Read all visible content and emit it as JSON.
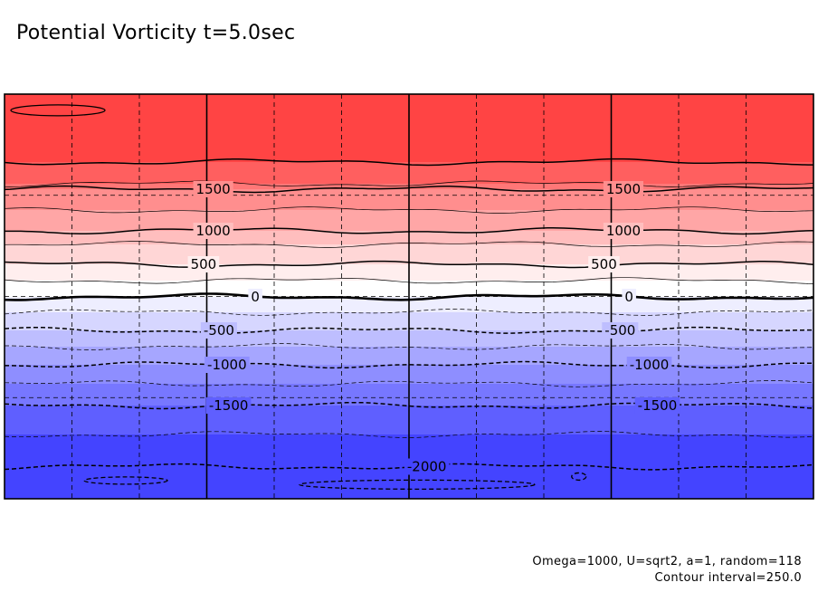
{
  "chart_data": {
    "type": "heatmap",
    "title": "Potential Vorticity t=5.0sec",
    "annotations": [
      "Omega=1000, U=sqrt2, a=1, random=118",
      "Contour interval=250.0"
    ],
    "ylim": [
      -2250,
      2250
    ],
    "contour_interval": 250,
    "bands": [
      {
        "from": 2000,
        "to": 2250,
        "color": "#ff4444"
      },
      {
        "from": 1750,
        "to": 2000,
        "color": "#ff5f5f"
      },
      {
        "from": 1500,
        "to": 1750,
        "color": "#ff7777"
      },
      {
        "from": 1250,
        "to": 1500,
        "color": "#ff8e8e"
      },
      {
        "from": 1000,
        "to": 1250,
        "color": "#ffa6a6"
      },
      {
        "from": 750,
        "to": 1000,
        "color": "#ffbebe"
      },
      {
        "from": 500,
        "to": 750,
        "color": "#ffd6d6"
      },
      {
        "from": 250,
        "to": 500,
        "color": "#ffeeee"
      },
      {
        "from": 0,
        "to": 250,
        "color": "#ffffff"
      },
      {
        "from": -250,
        "to": 0,
        "color": "#eeeeff"
      },
      {
        "from": -500,
        "to": -250,
        "color": "#d6d6ff"
      },
      {
        "from": -750,
        "to": -500,
        "color": "#bebeff"
      },
      {
        "from": -1000,
        "to": -750,
        "color": "#a6a6ff"
      },
      {
        "from": -1250,
        "to": -1000,
        "color": "#8e8eff"
      },
      {
        "from": -1500,
        "to": -1250,
        "color": "#7777ff"
      },
      {
        "from": -1750,
        "to": -1500,
        "color": "#5f5fff"
      },
      {
        "from": -2250,
        "to": -1750,
        "color": "#4444ff"
      }
    ],
    "contour_labels": [
      {
        "text": "1500",
        "value": 1500
      },
      {
        "text": "1500",
        "value": 1500
      },
      {
        "text": "1000",
        "value": 1000
      },
      {
        "text": "1000",
        "value": 1000
      },
      {
        "text": "500",
        "value": 500
      },
      {
        "text": "500",
        "value": 500
      },
      {
        "text": "0",
        "value": 0
      },
      {
        "text": "0",
        "value": 0
      },
      {
        "text": "-500",
        "value": -500
      },
      {
        "text": "-500",
        "value": -500
      },
      {
        "text": "-1000",
        "value": -1000
      },
      {
        "text": "-1000",
        "value": -1000
      },
      {
        "text": "-1500",
        "value": -1500
      },
      {
        "text": "-1500",
        "value": -1500
      },
      {
        "text": "-2000",
        "value": -2000
      }
    ],
    "closed_contours": [
      {
        "value": 2250,
        "sign": "positive"
      },
      {
        "value": -2250,
        "sign": "negative"
      },
      {
        "value": -2250,
        "sign": "negative"
      },
      {
        "value": -2250,
        "sign": "negative"
      }
    ]
  }
}
